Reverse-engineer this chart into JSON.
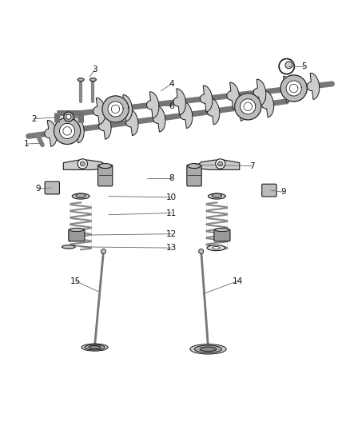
{
  "background_color": "#ffffff",
  "line_color": "#1a1a1a",
  "gray_fill": "#aaaaaa",
  "dark_gray": "#555555",
  "light_gray": "#dddddd",
  "figsize": [
    4.38,
    5.33
  ],
  "dpi": 100,
  "callouts": [
    [
      1,
      0.075,
      0.698,
      0.115,
      0.7
    ],
    [
      2,
      0.095,
      0.77,
      0.175,
      0.775
    ],
    [
      3,
      0.27,
      0.91,
      0.255,
      0.89
    ],
    [
      4,
      0.49,
      0.87,
      0.46,
      0.85
    ],
    [
      5,
      0.87,
      0.92,
      0.825,
      0.92
    ],
    [
      6,
      0.49,
      0.805,
      0.46,
      0.81
    ],
    [
      7,
      0.72,
      0.635,
      0.56,
      0.638
    ],
    [
      8,
      0.49,
      0.6,
      0.42,
      0.6
    ],
    [
      9,
      0.108,
      0.57,
      0.145,
      0.572
    ],
    [
      9,
      0.81,
      0.56,
      0.775,
      0.565
    ],
    [
      10,
      0.49,
      0.545,
      0.31,
      0.548
    ],
    [
      11,
      0.49,
      0.5,
      0.31,
      0.495
    ],
    [
      12,
      0.49,
      0.44,
      0.26,
      0.437
    ],
    [
      13,
      0.49,
      0.4,
      0.23,
      0.403
    ],
    [
      14,
      0.68,
      0.305,
      0.58,
      0.268
    ],
    [
      15,
      0.215,
      0.305,
      0.28,
      0.275
    ]
  ]
}
